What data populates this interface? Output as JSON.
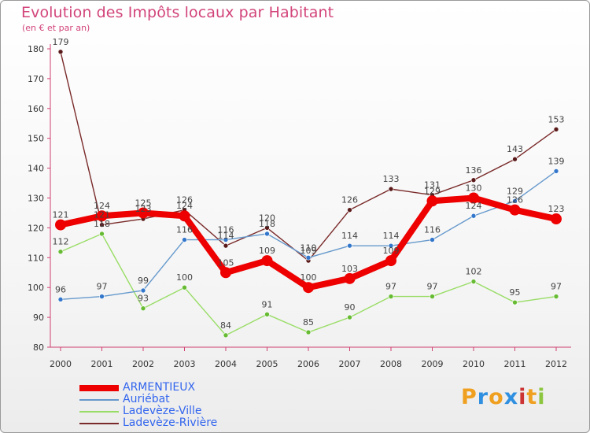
{
  "title": "Evolution des Impôts locaux par Habitant",
  "subtitle": "(en € et par an)",
  "logo": {
    "letters": [
      "P",
      "r",
      "o",
      "x",
      "i",
      "t",
      "i"
    ],
    "colors": [
      "#f0a020",
      "#2f8fe0",
      "#f0a020",
      "#2f8fe0",
      "#cc3333",
      "#f0a020",
      "#8cc63e"
    ]
  },
  "chart_data": {
    "type": "line",
    "title": "Evolution des Impôts locaux par Habitant",
    "subtitle": "(en € et par an)",
    "x": [
      "2000",
      "2001",
      "2002",
      "2003",
      "2004",
      "2005",
      "2006",
      "2007",
      "2008",
      "2009",
      "2010",
      "2011",
      "2012"
    ],
    "ylim": [
      80,
      180
    ],
    "yticks": [
      80,
      90,
      100,
      110,
      120,
      130,
      140,
      150,
      160,
      170,
      180
    ],
    "grid": false,
    "legend_position": "bottom-left",
    "series": [
      {
        "name": "Ladevèze-Rivière",
        "color": "#7a2a2a",
        "point_color": "#5a1a1a",
        "values": [
          179,
          121,
          123,
          126,
          114,
          120,
          109,
          126,
          133,
          131,
          136,
          143,
          153
        ]
      },
      {
        "name": "Ladevèze-Ville",
        "color": "#99dd66",
        "point_color": "#66bb33",
        "values": [
          112,
          118,
          93,
          100,
          84,
          91,
          85,
          90,
          97,
          97,
          102,
          95,
          97
        ]
      },
      {
        "name": "Auriébat",
        "color": "#6699cc",
        "point_color": "#3377cc",
        "values": [
          96,
          97,
          99,
          116,
          116,
          118,
          110,
          114,
          114,
          116,
          124,
          129,
          139
        ]
      },
      {
        "name": "ARMENTIEUX",
        "color": "#ee0000",
        "point_color": "#ee0000",
        "values": [
          121,
          124,
          125,
          124,
          105,
          109,
          100,
          103,
          109,
          129,
          130,
          126,
          123
        ],
        "bold": true
      }
    ],
    "legend_order": [
      "ARMENTIEUX",
      "Auriébat",
      "Ladevèze-Ville",
      "Ladevèze-Rivière"
    ]
  }
}
